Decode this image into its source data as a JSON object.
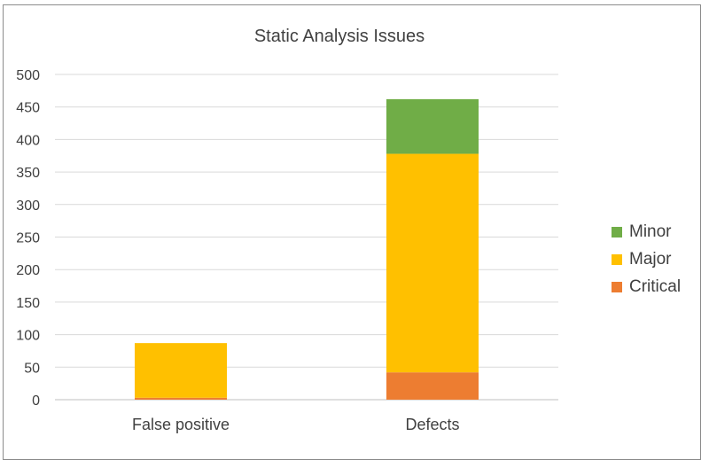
{
  "chart_data": {
    "type": "bar",
    "stacked": true,
    "title": "Static Analysis Issues",
    "xlabel": "",
    "ylabel": "",
    "categories": [
      "False positive",
      "Defects"
    ],
    "series": [
      {
        "name": "Critical",
        "values": [
          3,
          42
        ],
        "color": "#ED7D31"
      },
      {
        "name": "Major",
        "values": [
          84,
          336
        ],
        "color": "#FFC000"
      },
      {
        "name": "Minor",
        "values": [
          0,
          84
        ],
        "color": "#70AD47"
      }
    ],
    "ylim": [
      0,
      500
    ],
    "yticks": [
      0,
      50,
      100,
      150,
      200,
      250,
      300,
      350,
      400,
      450,
      500
    ],
    "grid": true,
    "legend_position": "right",
    "legend_order": [
      "Minor",
      "Major",
      "Critical"
    ]
  }
}
